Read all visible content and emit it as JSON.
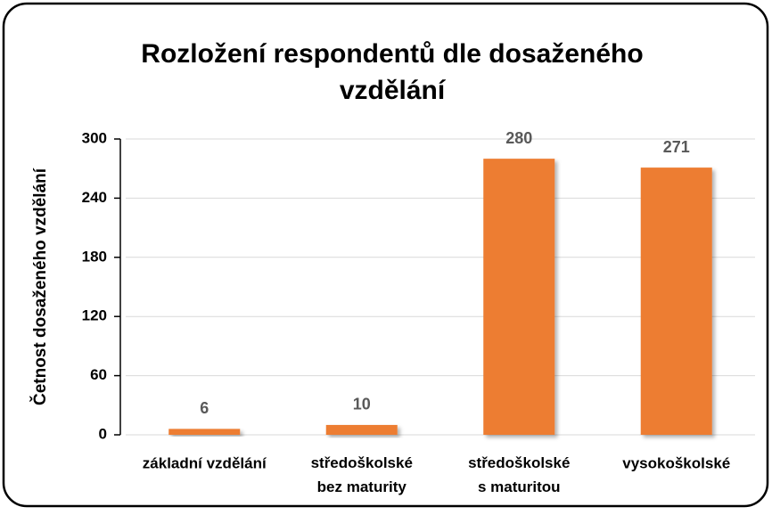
{
  "chart_data": {
    "type": "bar",
    "title": "Rozložení respondentů dle dosaženého vzdělání",
    "y_label": "Četnost dosaženého vzdělání",
    "categories": [
      "základní vzdělání",
      "středoškolské\nbez maturity",
      "středoškolské\ns maturitou",
      "vysokoškolské"
    ],
    "values": [
      6,
      10,
      280,
      271
    ],
    "color": "#ed7d31",
    "ylim": [
      0,
      300
    ],
    "yticks": [
      0,
      60,
      120,
      180,
      240,
      300
    ],
    "grid": true
  }
}
